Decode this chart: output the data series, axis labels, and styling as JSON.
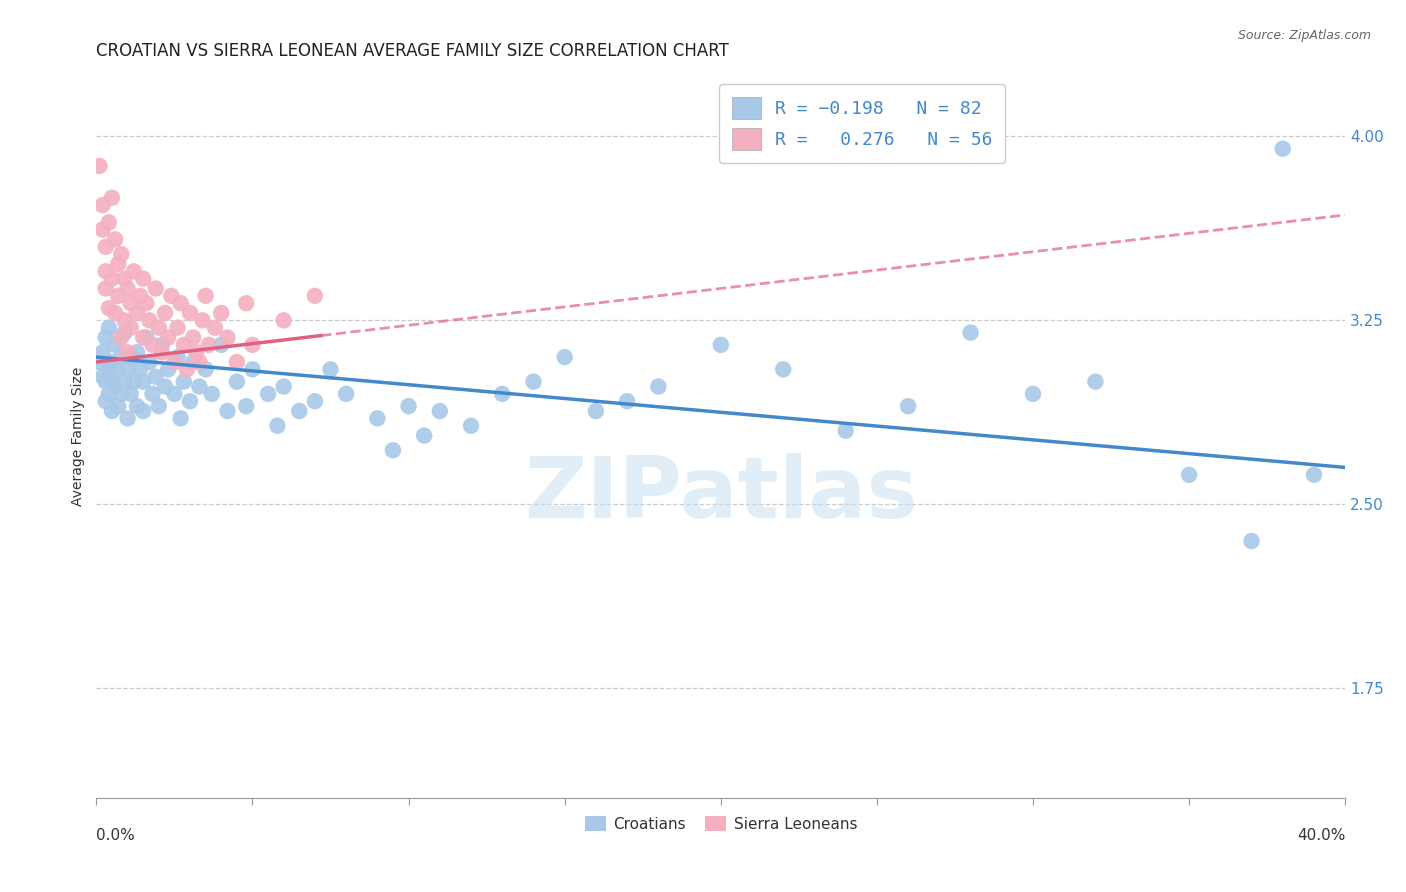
{
  "title": "CROATIAN VS SIERRA LEONEAN AVERAGE FAMILY SIZE CORRELATION CHART",
  "source": "Source: ZipAtlas.com",
  "ylabel": "Average Family Size",
  "yticks": [
    1.75,
    2.5,
    3.25,
    4.0
  ],
  "xlim": [
    0.0,
    0.4
  ],
  "ylim": [
    1.3,
    4.25
  ],
  "watermark": "ZIPatlas",
  "croatians_color": "#a8c8e8",
  "sierraleoneans_color": "#f4b0c0",
  "blue_line_color": "#4488cc",
  "pink_line_color": "#e06080",
  "blue_scatter": [
    [
      0.001,
      3.08
    ],
    [
      0.002,
      3.02
    ],
    [
      0.002,
      3.12
    ],
    [
      0.003,
      3.0
    ],
    [
      0.003,
      2.92
    ],
    [
      0.003,
      3.18
    ],
    [
      0.004,
      2.95
    ],
    [
      0.004,
      3.05
    ],
    [
      0.004,
      3.22
    ],
    [
      0.005,
      3.0
    ],
    [
      0.005,
      3.08
    ],
    [
      0.005,
      2.88
    ],
    [
      0.006,
      2.98
    ],
    [
      0.006,
      3.15
    ],
    [
      0.007,
      3.05
    ],
    [
      0.007,
      2.9
    ],
    [
      0.008,
      3.1
    ],
    [
      0.008,
      2.95
    ],
    [
      0.009,
      3.0
    ],
    [
      0.009,
      3.2
    ],
    [
      0.01,
      2.85
    ],
    [
      0.01,
      3.05
    ],
    [
      0.011,
      3.1
    ],
    [
      0.011,
      2.95
    ],
    [
      0.012,
      3.0
    ],
    [
      0.013,
      2.9
    ],
    [
      0.013,
      3.12
    ],
    [
      0.014,
      3.05
    ],
    [
      0.015,
      2.88
    ],
    [
      0.015,
      3.0
    ],
    [
      0.016,
      3.18
    ],
    [
      0.017,
      3.08
    ],
    [
      0.018,
      2.95
    ],
    [
      0.019,
      3.02
    ],
    [
      0.02,
      2.9
    ],
    [
      0.021,
      3.15
    ],
    [
      0.022,
      2.98
    ],
    [
      0.023,
      3.05
    ],
    [
      0.025,
      2.95
    ],
    [
      0.026,
      3.1
    ],
    [
      0.027,
      2.85
    ],
    [
      0.028,
      3.0
    ],
    [
      0.03,
      2.92
    ],
    [
      0.031,
      3.08
    ],
    [
      0.033,
      2.98
    ],
    [
      0.035,
      3.05
    ],
    [
      0.037,
      2.95
    ],
    [
      0.04,
      3.15
    ],
    [
      0.042,
      2.88
    ],
    [
      0.045,
      3.0
    ],
    [
      0.048,
      2.9
    ],
    [
      0.05,
      3.05
    ],
    [
      0.055,
      2.95
    ],
    [
      0.058,
      2.82
    ],
    [
      0.06,
      2.98
    ],
    [
      0.065,
      2.88
    ],
    [
      0.07,
      2.92
    ],
    [
      0.075,
      3.05
    ],
    [
      0.08,
      2.95
    ],
    [
      0.09,
      2.85
    ],
    [
      0.095,
      2.72
    ],
    [
      0.1,
      2.9
    ],
    [
      0.105,
      2.78
    ],
    [
      0.11,
      2.88
    ],
    [
      0.12,
      2.82
    ],
    [
      0.13,
      2.95
    ],
    [
      0.14,
      3.0
    ],
    [
      0.15,
      3.1
    ],
    [
      0.16,
      2.88
    ],
    [
      0.17,
      2.92
    ],
    [
      0.18,
      2.98
    ],
    [
      0.2,
      3.15
    ],
    [
      0.22,
      3.05
    ],
    [
      0.24,
      2.8
    ],
    [
      0.26,
      2.9
    ],
    [
      0.28,
      3.2
    ],
    [
      0.3,
      2.95
    ],
    [
      0.32,
      3.0
    ],
    [
      0.35,
      2.62
    ],
    [
      0.37,
      2.35
    ],
    [
      0.38,
      3.95
    ],
    [
      0.39,
      2.62
    ]
  ],
  "pink_scatter": [
    [
      0.001,
      3.88
    ],
    [
      0.002,
      3.62
    ],
    [
      0.002,
      3.72
    ],
    [
      0.003,
      3.55
    ],
    [
      0.003,
      3.45
    ],
    [
      0.003,
      3.38
    ],
    [
      0.004,
      3.65
    ],
    [
      0.004,
      3.3
    ],
    [
      0.005,
      3.75
    ],
    [
      0.005,
      3.42
    ],
    [
      0.006,
      3.58
    ],
    [
      0.006,
      3.28
    ],
    [
      0.007,
      3.48
    ],
    [
      0.007,
      3.35
    ],
    [
      0.008,
      3.52
    ],
    [
      0.008,
      3.18
    ],
    [
      0.009,
      3.42
    ],
    [
      0.009,
      3.25
    ],
    [
      0.01,
      3.38
    ],
    [
      0.01,
      3.12
    ],
    [
      0.011,
      3.32
    ],
    [
      0.011,
      3.22
    ],
    [
      0.012,
      3.45
    ],
    [
      0.013,
      3.28
    ],
    [
      0.014,
      3.35
    ],
    [
      0.015,
      3.18
    ],
    [
      0.015,
      3.42
    ],
    [
      0.016,
      3.32
    ],
    [
      0.017,
      3.25
    ],
    [
      0.018,
      3.15
    ],
    [
      0.019,
      3.38
    ],
    [
      0.02,
      3.22
    ],
    [
      0.021,
      3.12
    ],
    [
      0.022,
      3.28
    ],
    [
      0.023,
      3.18
    ],
    [
      0.024,
      3.35
    ],
    [
      0.025,
      3.08
    ],
    [
      0.026,
      3.22
    ],
    [
      0.027,
      3.32
    ],
    [
      0.028,
      3.15
    ],
    [
      0.029,
      3.05
    ],
    [
      0.03,
      3.28
    ],
    [
      0.031,
      3.18
    ],
    [
      0.032,
      3.12
    ],
    [
      0.033,
      3.08
    ],
    [
      0.034,
      3.25
    ],
    [
      0.035,
      3.35
    ],
    [
      0.036,
      3.15
    ],
    [
      0.038,
      3.22
    ],
    [
      0.04,
      3.28
    ],
    [
      0.042,
      3.18
    ],
    [
      0.045,
      3.08
    ],
    [
      0.048,
      3.32
    ],
    [
      0.05,
      3.15
    ],
    [
      0.06,
      3.25
    ],
    [
      0.07,
      3.35
    ]
  ],
  "blue_trendline": [
    [
      0.0,
      3.1
    ],
    [
      0.4,
      2.65
    ]
  ],
  "pink_trendline": [
    [
      0.0,
      3.08
    ],
    [
      0.4,
      3.68
    ]
  ],
  "pink_trendline_data_end": 0.072,
  "grid_color": "#cccccc",
  "background_color": "#ffffff",
  "title_fontsize": 12,
  "axis_label_fontsize": 10,
  "tick_fontsize": 11,
  "legend_fontsize": 13
}
